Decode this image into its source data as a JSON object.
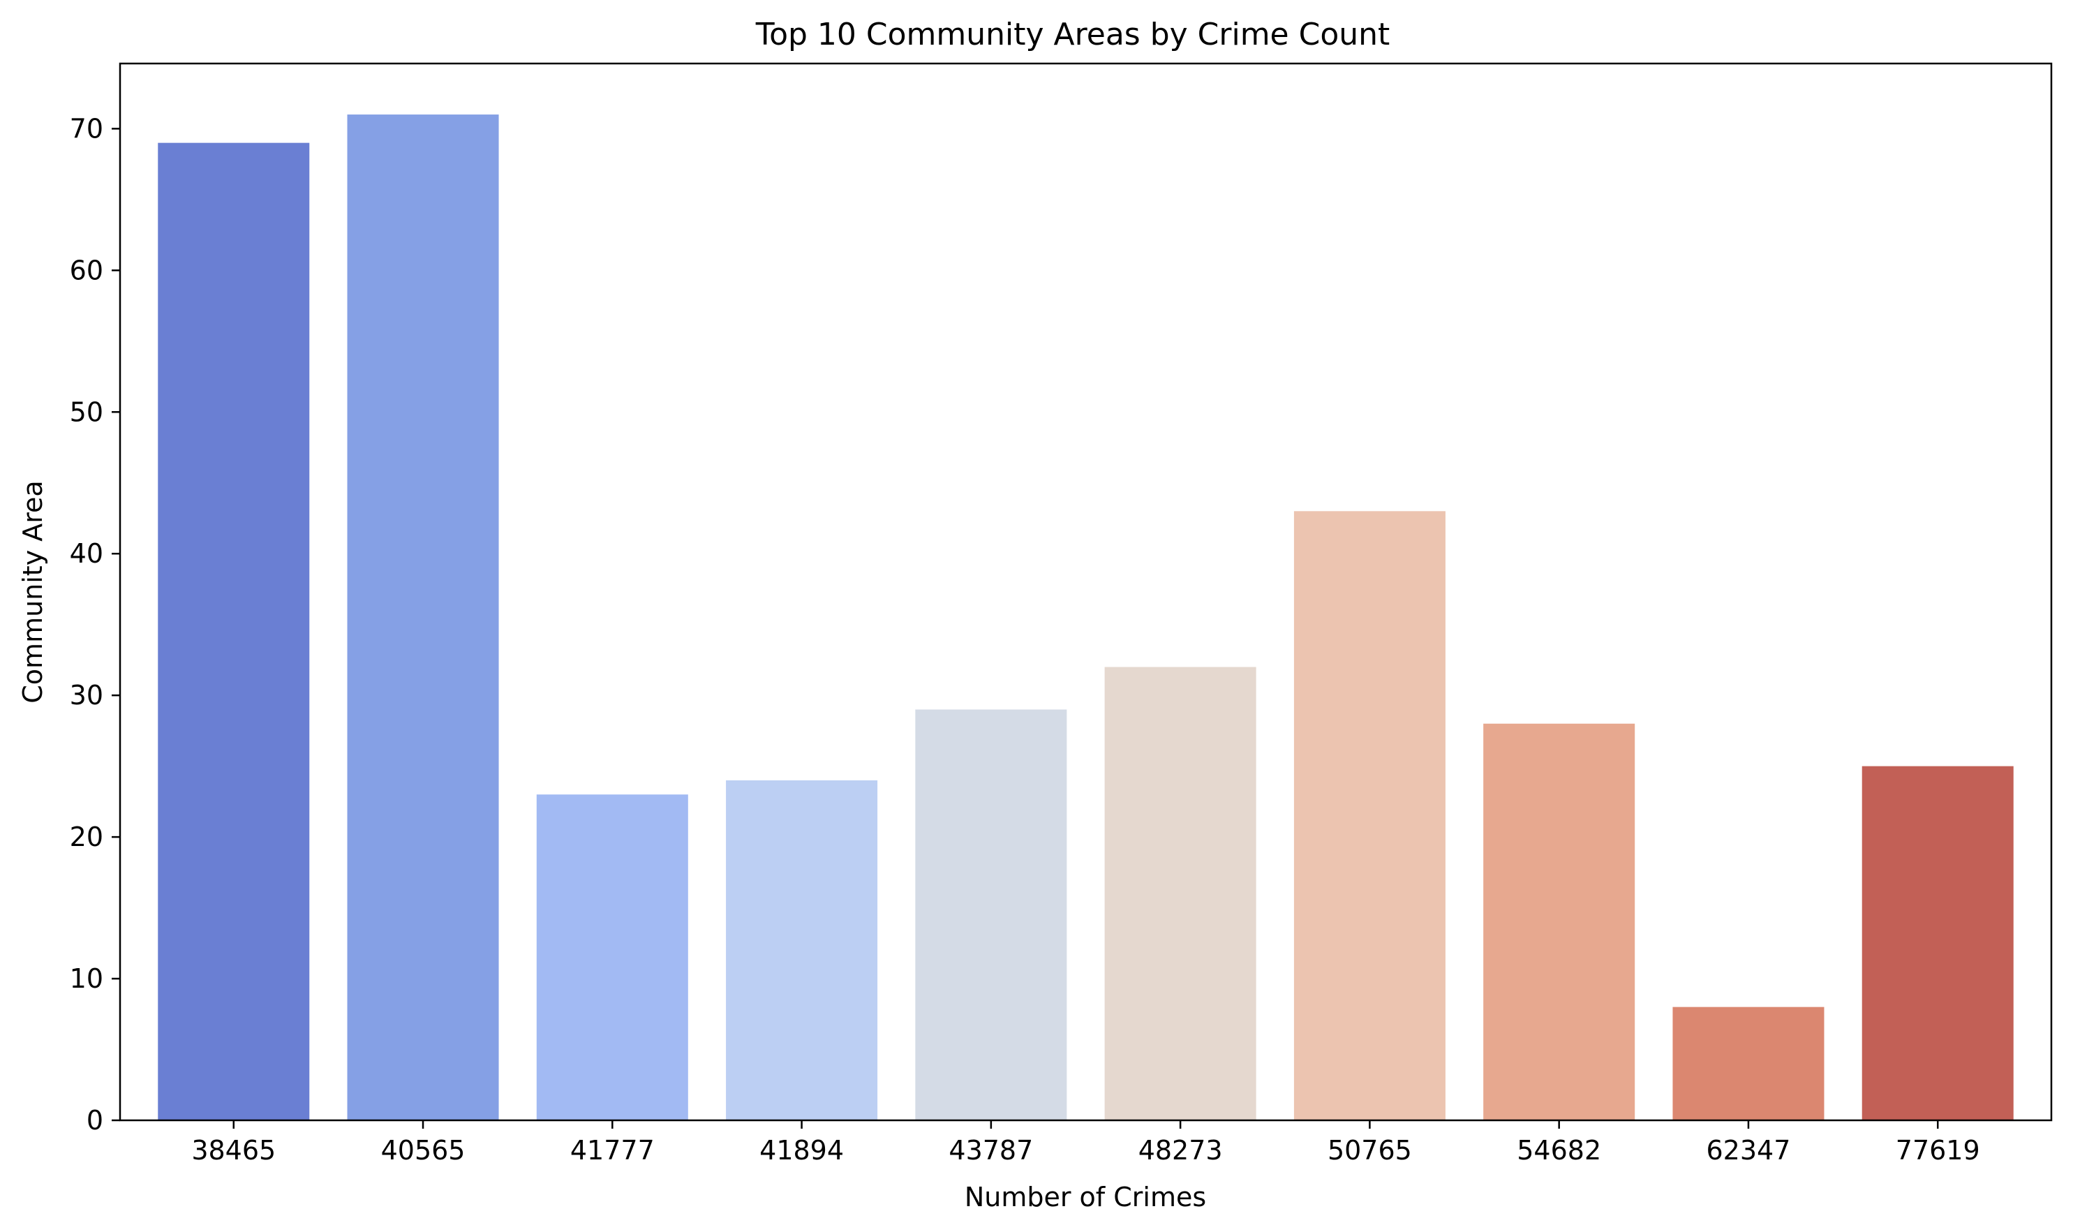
{
  "chart_data": {
    "type": "bar",
    "title": "Top 10 Community Areas by Crime Count",
    "xlabel": "Number of Crimes",
    "ylabel": "Community Area",
    "categories": [
      "38465",
      "40565",
      "41777",
      "41894",
      "43787",
      "48273",
      "50765",
      "54682",
      "62347",
      "77619"
    ],
    "values": [
      69,
      71,
      23,
      24,
      29,
      32,
      43,
      28,
      8,
      25
    ],
    "colors": [
      "#6a7fd3",
      "#85a0e5",
      "#a2baf3",
      "#bccff3",
      "#d4dbe6",
      "#e5d8cf",
      "#ecc4b0",
      "#e7a88f",
      "#db8770",
      "#c26056"
    ],
    "ylim": [
      0,
      74.6
    ],
    "yticks": [
      0,
      10,
      20,
      30,
      40,
      50,
      60,
      70
    ],
    "grid": false,
    "legend": "none"
  }
}
